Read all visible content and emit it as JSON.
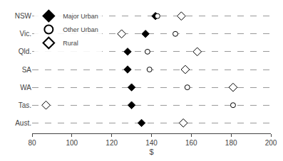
{
  "chart_data": {
    "type": "scatter",
    "orientation": "horizontal",
    "categories": [
      "NSW",
      "Vic.",
      "Qld.",
      "SA",
      "WA",
      "Tas.",
      "Aust."
    ],
    "series": [
      {
        "name": "Major Urban",
        "color": "black",
        "marker": "diamond",
        "values": [
          142,
          137,
          128,
          128,
          130,
          130,
          135
        ]
      },
      {
        "name": "Other Urban",
        "color": "white",
        "marker": "circle",
        "values": [
          143,
          152,
          138,
          139,
          158,
          181,
          156
        ]
      },
      {
        "name": "Rural",
        "color": "white",
        "marker": "diamond",
        "values": [
          155,
          125,
          163,
          157,
          181,
          87,
          156
        ]
      }
    ],
    "xlim": [
      80,
      200
    ],
    "xticks": [
      80,
      100,
      120,
      140,
      160,
      180,
      200
    ],
    "xlabel": "$",
    "grid": true,
    "legend": "upper left"
  }
}
